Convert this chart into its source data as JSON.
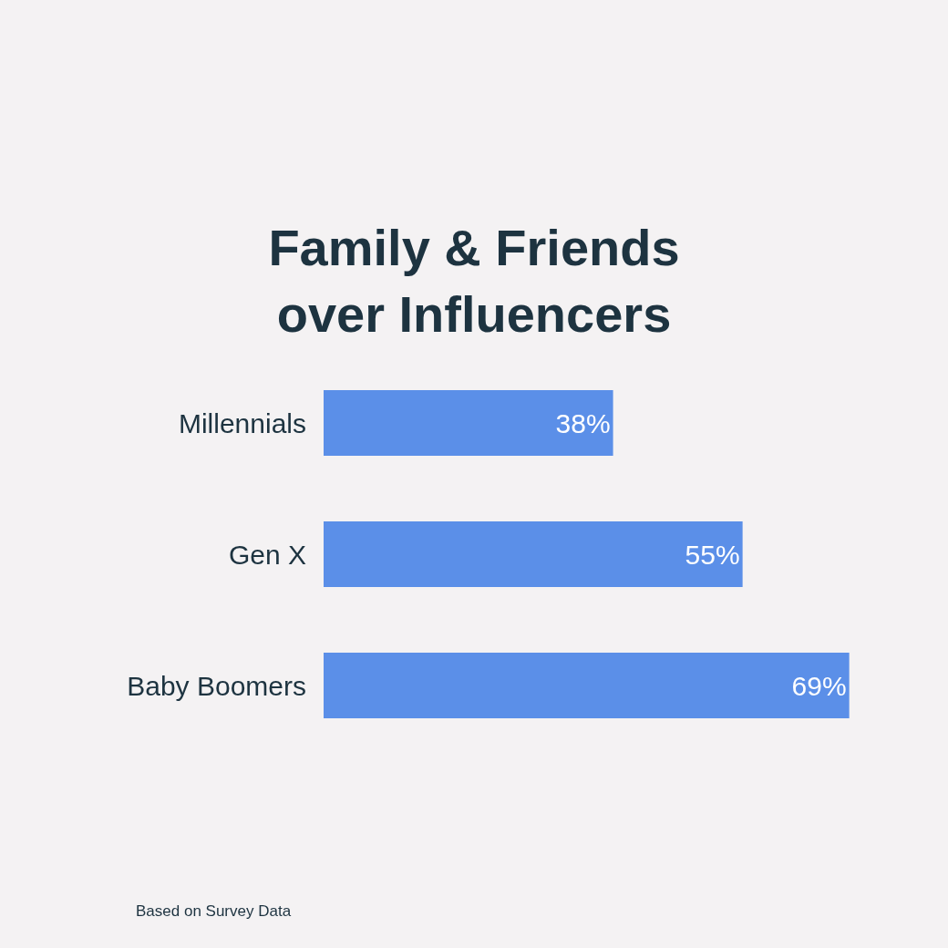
{
  "chart_data": {
    "type": "bar",
    "orientation": "horizontal",
    "title": "Family & Friends\nover Influencers",
    "categories": [
      "Millennials",
      "Gen X",
      "Baby Boomers"
    ],
    "values": [
      38,
      55,
      69
    ],
    "value_labels": [
      "38%",
      "55%",
      "69%"
    ],
    "color": "#5b8fe8",
    "tick_labels": "y",
    "legend": false,
    "annotations": [
      "Based on Survey Data"
    ]
  }
}
